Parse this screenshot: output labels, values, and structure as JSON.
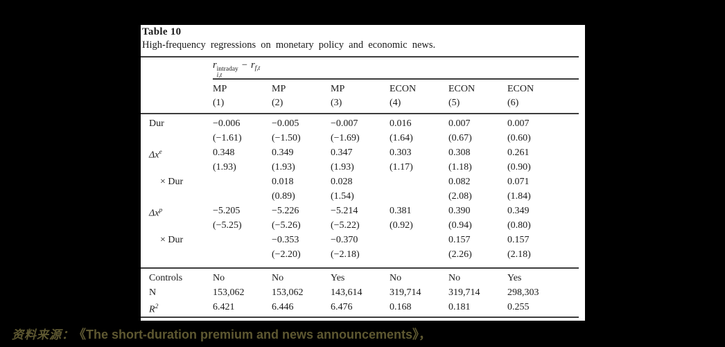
{
  "colors": {
    "page_bg": "#000000",
    "panel_bg": "#ffffff",
    "table_text": "#1b1b1b",
    "rule": "#3d3d3d",
    "source_text": "#5e5831"
  },
  "table": {
    "title": "Table 10",
    "subtitle": "High-frequency regressions on monetary policy and economic news.",
    "formula": {
      "var1": "r",
      "sup1": "intraday",
      "sub1": "i,t",
      "operator": "−",
      "var2": "r",
      "sub2": "f,t"
    },
    "columns": [
      {
        "label": "MP",
        "num": "(1)"
      },
      {
        "label": "MP",
        "num": "(2)"
      },
      {
        "label": "MP",
        "num": "(3)"
      },
      {
        "label": "ECON",
        "num": "(4)"
      },
      {
        "label": "ECON",
        "num": "(5)"
      },
      {
        "label": "ECON",
        "num": "(6)"
      }
    ],
    "rows": [
      {
        "label": "Dur",
        "sup": "",
        "italic": false,
        "indent": false,
        "values": [
          "−0.006",
          "−0.005",
          "−0.007",
          "0.016",
          "0.007",
          "0.007"
        ]
      },
      {
        "label": "",
        "sup": "",
        "italic": false,
        "indent": false,
        "values": [
          "(−1.61)",
          "(−1.50)",
          "(−1.69)",
          "(1.64)",
          "(0.67)",
          "(0.60)"
        ]
      },
      {
        "label": "Δx",
        "sup": "e",
        "italic": true,
        "indent": false,
        "values": [
          "0.348",
          "0.349",
          "0.347",
          "0.303",
          "0.308",
          "0.261"
        ]
      },
      {
        "label": "",
        "sup": "",
        "italic": false,
        "indent": false,
        "values": [
          "(1.93)",
          "(1.93)",
          "(1.93)",
          "(1.17)",
          "(1.18)",
          "(0.90)"
        ]
      },
      {
        "label": "× Dur",
        "sup": "",
        "italic": false,
        "indent": true,
        "values": [
          "",
          "0.018",
          "0.028",
          "",
          "0.082",
          "0.071"
        ]
      },
      {
        "label": "",
        "sup": "",
        "italic": false,
        "indent": false,
        "values": [
          "",
          "(0.89)",
          "(1.54)",
          "",
          "(2.08)",
          "(1.84)"
        ]
      },
      {
        "label": "Δx",
        "sup": "p",
        "italic": true,
        "indent": false,
        "values": [
          "−5.205",
          "−5.226",
          "−5.214",
          "0.381",
          "0.390",
          "0.349"
        ]
      },
      {
        "label": "",
        "sup": "",
        "italic": false,
        "indent": false,
        "values": [
          "(−5.25)",
          "(−5.26)",
          "(−5.22)",
          "(0.92)",
          "(0.94)",
          "(0.80)"
        ]
      },
      {
        "label": "× Dur",
        "sup": "",
        "italic": false,
        "indent": true,
        "values": [
          "",
          "−0.353",
          "−0.370",
          "",
          "0.157",
          "0.157"
        ]
      },
      {
        "label": "",
        "sup": "",
        "italic": false,
        "indent": false,
        "values": [
          "",
          "(−2.20)",
          "(−2.18)",
          "",
          "(2.26)",
          "(2.18)"
        ]
      }
    ],
    "bottom_rows": [
      {
        "label": "Controls",
        "sup": "",
        "italic": false,
        "indent": false,
        "values": [
          "No",
          "No",
          "Yes",
          "No",
          "No",
          "Yes"
        ]
      },
      {
        "label": "N",
        "sup": "",
        "italic": false,
        "indent": false,
        "values": [
          "153,062",
          "153,062",
          "143,614",
          "319,714",
          "319,714",
          "298,303"
        ]
      },
      {
        "label": "R",
        "sup": "2",
        "italic": true,
        "indent": false,
        "values": [
          "6.421",
          "6.446",
          "6.476",
          "0.168",
          "0.181",
          "0.255"
        ]
      }
    ]
  },
  "footer": {
    "source_label": "资料来源：",
    "source_title": "《The short-duration premium and news announcements》，"
  }
}
